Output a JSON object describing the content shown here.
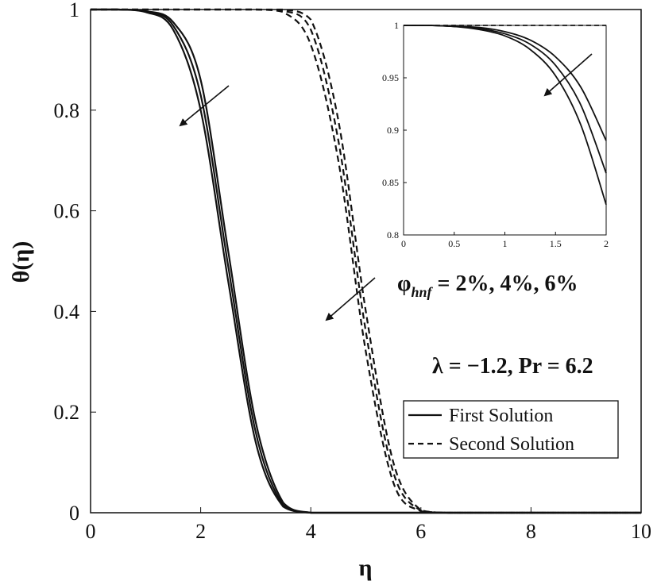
{
  "chart_data": [
    {
      "type": "line",
      "xlabel": "η",
      "ylabel": "θ(η)",
      "xlim": [
        0,
        10
      ],
      "ylim": [
        0,
        1
      ],
      "xticks": [
        "0",
        "2",
        "4",
        "6",
        "8",
        "10"
      ],
      "yticks": [
        "0",
        "0.2",
        "0.4",
        "0.6",
        "0.8",
        "1"
      ],
      "grid": false,
      "legend": {
        "placement": "bottom-right",
        "entries": [
          "First Solution",
          "Second Solution"
        ]
      },
      "annotations": {
        "phi_symbol": "φ",
        "phi_subscript": "hnf",
        "phi_values": " = 2%, 4%, 6%",
        "params": "λ = −1.2, Pr = 6.2"
      },
      "x": [
        0,
        0.5,
        1.0,
        1.5,
        2.0,
        2.5,
        3.0,
        3.5,
        4.0,
        4.5,
        5.0,
        5.5,
        6.0,
        6.5,
        7.0,
        8.0,
        9.0,
        10.0
      ],
      "series": [
        {
          "style": "solid",
          "values": [
            1,
            1,
            0.997,
            0.975,
            0.86,
            0.52,
            0.18,
            0.02,
            0,
            0,
            0,
            0,
            0,
            0,
            0,
            0,
            0,
            0
          ]
        },
        {
          "style": "solid",
          "values": [
            1,
            1,
            0.996,
            0.968,
            0.83,
            0.49,
            0.16,
            0.015,
            0,
            0,
            0,
            0,
            0,
            0,
            0,
            0,
            0,
            0
          ]
        },
        {
          "style": "solid",
          "values": [
            1,
            1,
            0.995,
            0.96,
            0.8,
            0.46,
            0.14,
            0.012,
            0,
            0,
            0,
            0,
            0,
            0,
            0,
            0,
            0,
            0
          ]
        },
        {
          "style": "dashed",
          "values": [
            1,
            1,
            1,
            1,
            1,
            1,
            1,
            1,
            0.98,
            0.78,
            0.4,
            0.1,
            0.005,
            0,
            0,
            0,
            0,
            0
          ]
        },
        {
          "style": "dashed",
          "values": [
            1,
            1,
            1,
            1,
            1,
            1,
            1,
            0.998,
            0.96,
            0.74,
            0.36,
            0.08,
            0.004,
            0,
            0,
            0,
            0,
            0
          ]
        },
        {
          "style": "dashed",
          "values": [
            1,
            1,
            1,
            1,
            1,
            1,
            1,
            0.995,
            0.93,
            0.7,
            0.32,
            0.06,
            0.003,
            0,
            0,
            0,
            0,
            0
          ]
        }
      ]
    },
    {
      "type": "line",
      "title": "inset",
      "xlim": [
        0,
        2
      ],
      "ylim": [
        0.8,
        1
      ],
      "xticks": [
        "0",
        "0.5",
        "1",
        "1.5",
        "2"
      ],
      "yticks": [
        "0.8",
        "0.85",
        "0.9",
        "0.95",
        "1"
      ],
      "x": [
        0,
        0.25,
        0.5,
        0.75,
        1.0,
        1.25,
        1.5,
        1.75,
        2.0
      ],
      "series": [
        {
          "style": "solid",
          "values": [
            1,
            1,
            0.999,
            0.998,
            0.994,
            0.986,
            0.97,
            0.941,
            0.89
          ]
        },
        {
          "style": "solid",
          "values": [
            1,
            1,
            0.999,
            0.997,
            0.992,
            0.982,
            0.962,
            0.924,
            0.859
          ]
        },
        {
          "style": "solid",
          "values": [
            1,
            1,
            0.999,
            0.996,
            0.99,
            0.977,
            0.952,
            0.905,
            0.829
          ]
        },
        {
          "style": "dashed",
          "values": [
            1,
            1,
            1,
            1,
            1,
            1,
            1,
            1,
            1
          ]
        }
      ]
    }
  ]
}
